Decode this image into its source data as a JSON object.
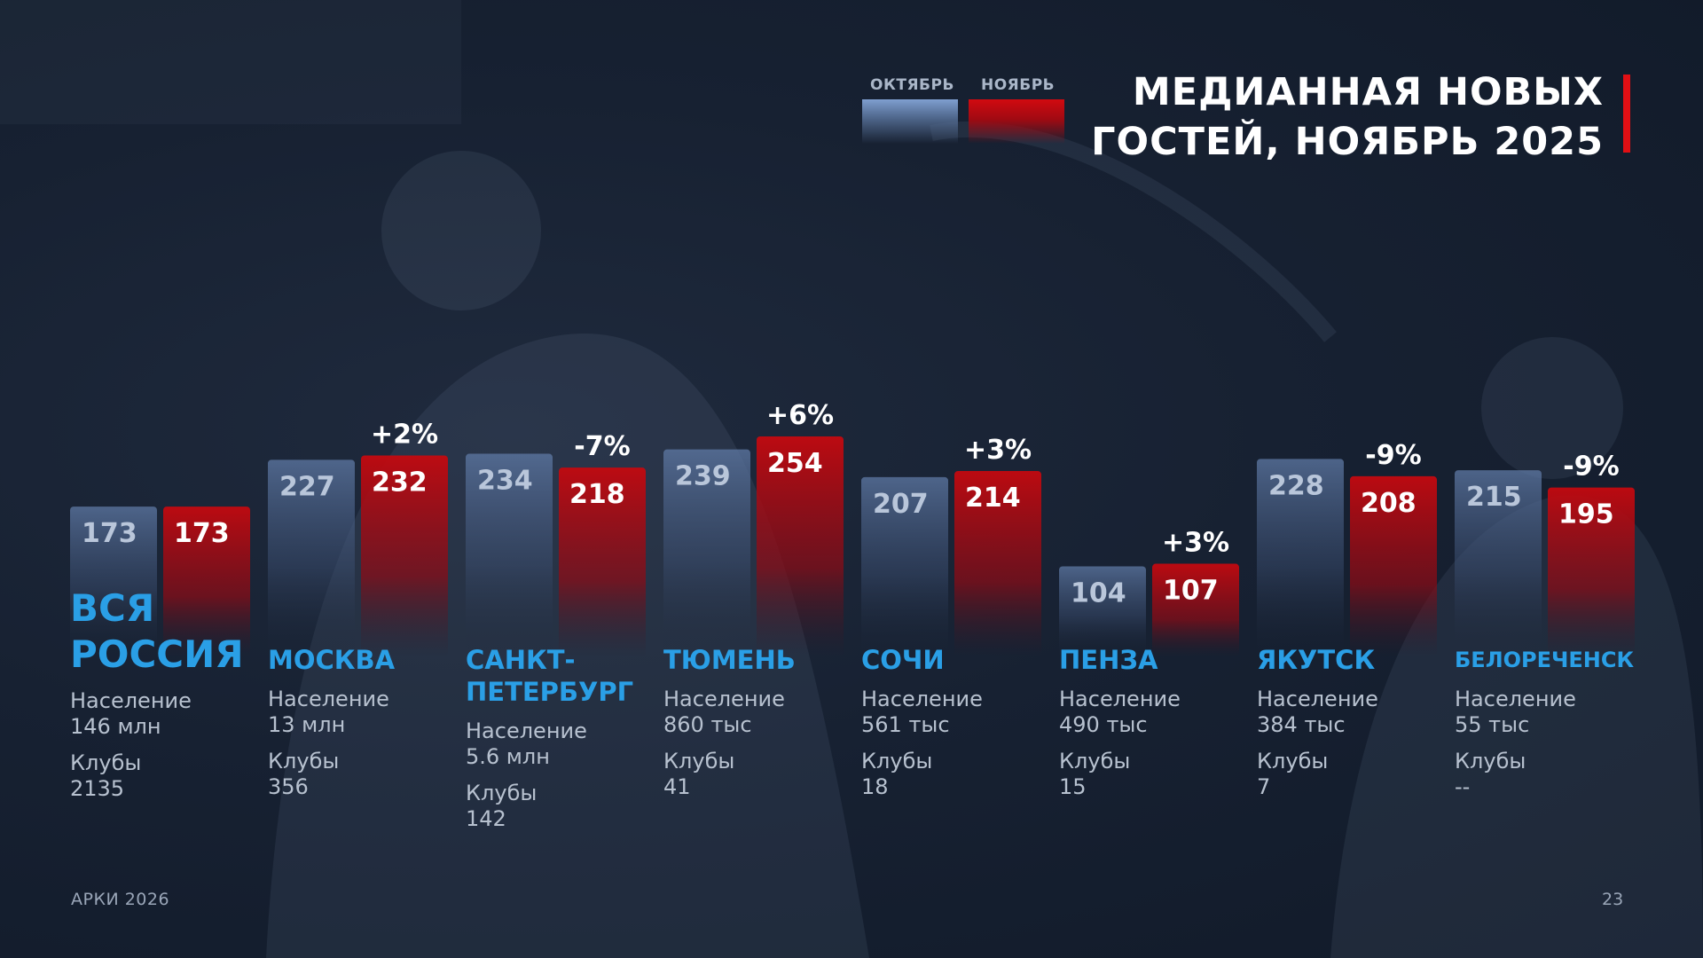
{
  "title_lines": [
    "МЕДИАННАЯ НОВЫХ",
    "ГОСТЕЙ, НОЯБРЬ 2025"
  ],
  "legend": {
    "october": "ОКТЯБРЬ",
    "november": "НОЯБРЬ"
  },
  "colors": {
    "october": "#6b86b3",
    "november": "#c20b12",
    "city": "#2a9fe6",
    "accent": "#e10f14"
  },
  "footer": {
    "left": "АРКИ 2026",
    "page": "23"
  },
  "chart_data": {
    "type": "bar",
    "categories": [
      "ВСЯ РОССИЯ",
      "МОСКВА",
      "САНКТ-ПЕТЕРБУРГ",
      "ТЮМЕНЬ",
      "СОЧИ",
      "ПЕНЗА",
      "ЯКУТСК",
      "БЕЛОРЕЧЕНСК"
    ],
    "series": [
      {
        "name": "ОКТЯБРЬ",
        "values": [
          173,
          227,
          234,
          239,
          207,
          104,
          228,
          215
        ]
      },
      {
        "name": "НОЯБРЬ",
        "values": [
          173,
          232,
          218,
          254,
          214,
          107,
          208,
          195
        ]
      }
    ],
    "changes": [
      "",
      "+2%",
      "-7%",
      "+6%",
      "+3%",
      "+3%",
      "-9%",
      "-9%"
    ],
    "ylim": [
      0,
      260
    ]
  },
  "regions": [
    {
      "name_lines": [
        "ВСЯ",
        "РОССИЯ"
      ],
      "population_label": "Население",
      "population": "146 млн",
      "clubs_label": "Клубы",
      "clubs": "2135"
    },
    {
      "name_lines": [
        "МОСКВА"
      ],
      "population_label": "Население",
      "population": "13 млн",
      "clubs_label": "Клубы",
      "clubs": "356"
    },
    {
      "name_lines": [
        "САНКТ-",
        "ПЕТЕРБУРГ"
      ],
      "population_label": "Население",
      "population": "5.6 млн",
      "clubs_label": "Клубы",
      "clubs": "142"
    },
    {
      "name_lines": [
        "ТЮМЕНЬ"
      ],
      "population_label": "Население",
      "population": "860 тыс",
      "clubs_label": "Клубы",
      "clubs": "41"
    },
    {
      "name_lines": [
        "СОЧИ"
      ],
      "population_label": "Население",
      "population": "561 тыс",
      "clubs_label": "Клубы",
      "clubs": "18"
    },
    {
      "name_lines": [
        "ПЕНЗА"
      ],
      "population_label": "Население",
      "population": "490 тыс",
      "clubs_label": "Клубы",
      "clubs": "15"
    },
    {
      "name_lines": [
        "ЯКУТСК"
      ],
      "population_label": "Население",
      "population": "384 тыс",
      "clubs_label": "Клубы",
      "clubs": "7"
    },
    {
      "name_lines": [
        "БЕЛОРЕЧЕНСК"
      ],
      "population_label": "Население",
      "population": "55 тыс",
      "clubs_label": "Клубы",
      "clubs": "--"
    }
  ]
}
